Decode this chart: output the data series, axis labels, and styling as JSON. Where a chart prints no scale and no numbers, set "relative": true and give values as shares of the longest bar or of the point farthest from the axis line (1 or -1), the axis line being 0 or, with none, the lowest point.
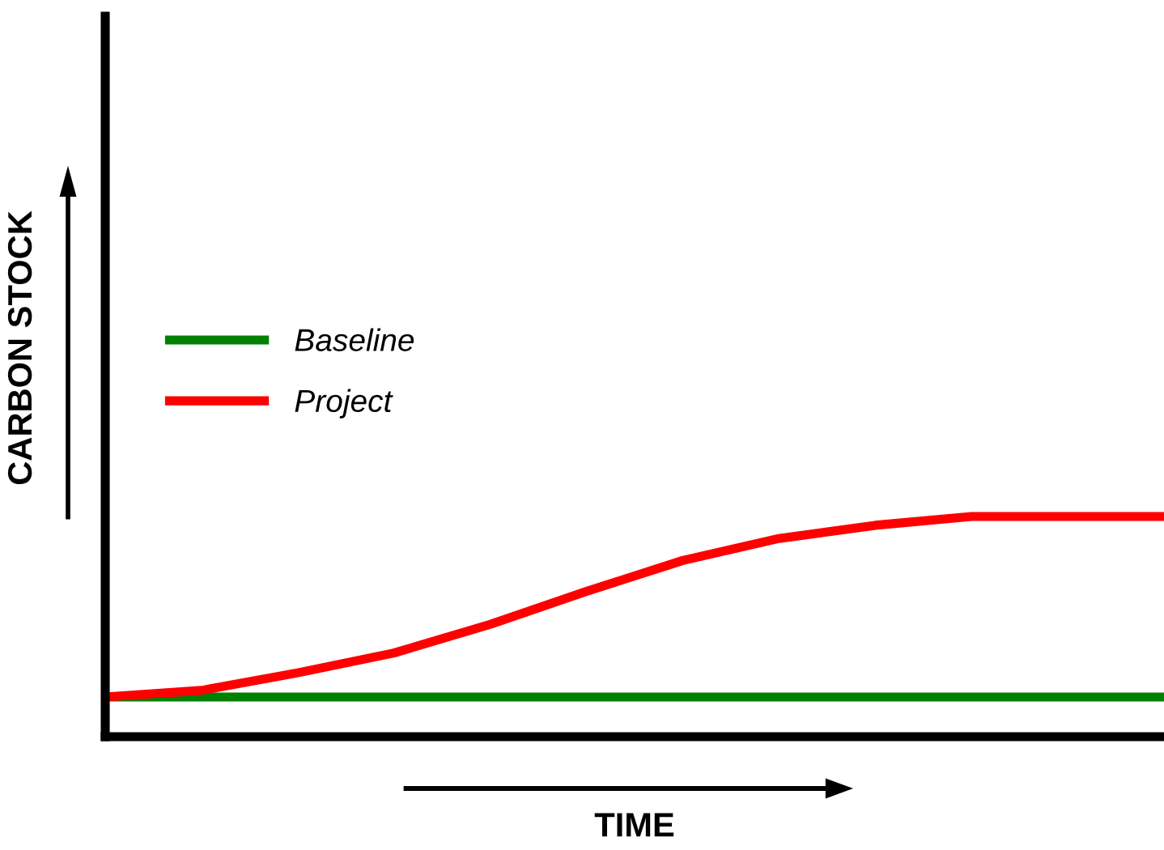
{
  "chart_data": {
    "type": "line",
    "relative": true,
    "xlabel": "TIME",
    "ylabel": "CARBON STOCK",
    "categories": [
      null,
      null,
      null,
      null,
      null,
      null,
      null,
      null,
      null,
      null,
      null,
      null
    ],
    "series": [
      {
        "name": "Baseline",
        "color": "#008000",
        "values": [
          0.18,
          0.18,
          0.18,
          0.18,
          0.18,
          0.18,
          0.18,
          0.18,
          0.18,
          0.18,
          0.18,
          0.18
        ]
      },
      {
        "name": "Project",
        "color": "#ff0000",
        "values": [
          0.18,
          0.21,
          0.29,
          0.38,
          0.51,
          0.66,
          0.8,
          0.9,
          0.96,
          1,
          1,
          1
        ]
      }
    ],
    "legend": "top left",
    "grid": false,
    "marker": "none",
    "line_style": "solid"
  }
}
